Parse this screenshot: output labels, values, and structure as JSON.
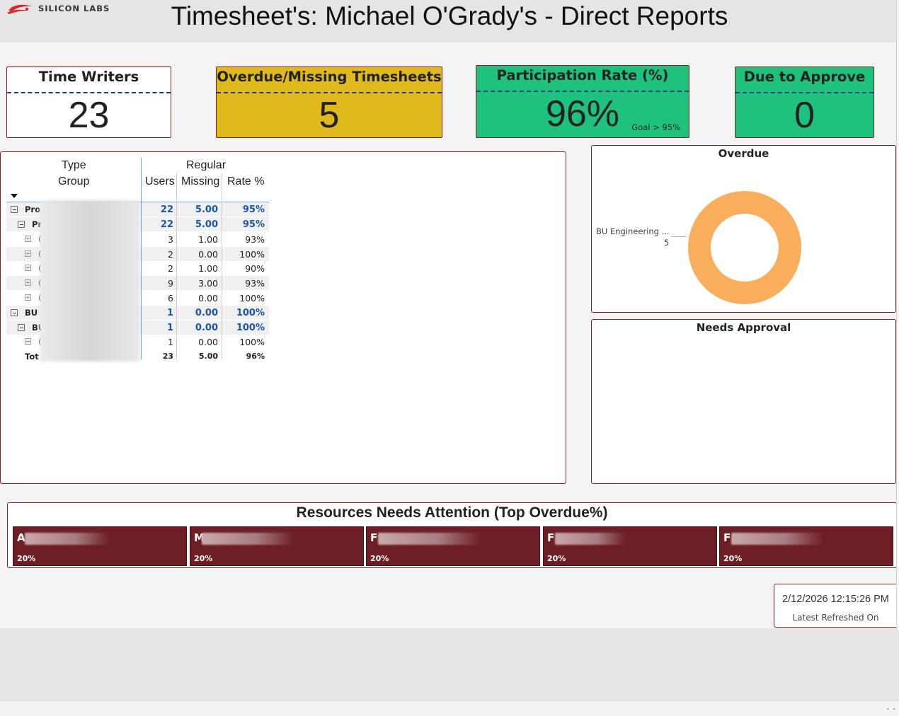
{
  "header": {
    "logo_text": "SILICON LABS",
    "title": "Timesheet's: Michael O'Grady's - Direct Reports"
  },
  "kpis": {
    "time_writers": {
      "title": "Time Writers",
      "value": "23"
    },
    "overdue": {
      "title": "Overdue/Missing Timesheets",
      "value": "5",
      "color": "#e0b91c"
    },
    "participation": {
      "title": "Participation Rate (%)",
      "value": "96%",
      "goal": "Goal > 95%",
      "color": "#1ec27d"
    },
    "due_to_approve": {
      "title": "Due to Approve",
      "value": "0",
      "color": "#1ec27d"
    }
  },
  "matrix": {
    "headers": {
      "type": "Type",
      "group": "Group",
      "regular": "Regular",
      "users": "Users",
      "missing": "Missing",
      "rate": "Rate %"
    },
    "rows": [
      {
        "label": "Pro",
        "users": "22",
        "missing": "5.00",
        "rate": "95%"
      },
      {
        "label": "Pr",
        "users": "22",
        "missing": "5.00",
        "rate": "95%"
      },
      {
        "label": "(",
        "users": "3",
        "missing": "1.00",
        "rate": "93%"
      },
      {
        "label": "(",
        "users": "2",
        "missing": "0.00",
        "rate": "100%"
      },
      {
        "label": "(",
        "users": "2",
        "missing": "1.00",
        "rate": "90%"
      },
      {
        "label": "(",
        "users": "9",
        "missing": "3.00",
        "rate": "93%"
      },
      {
        "label": "(",
        "users": "6",
        "missing": "0.00",
        "rate": "100%"
      },
      {
        "label": "BU",
        "users": "1",
        "missing": "0.00",
        "rate": "100%"
      },
      {
        "label": "BU",
        "users": "1",
        "missing": "0.00",
        "rate": "100%"
      },
      {
        "label": "(",
        "users": "1",
        "missing": "0.00",
        "rate": "100%"
      },
      {
        "label": "Tot",
        "users": "23",
        "missing": "5.00",
        "rate": "96%"
      }
    ]
  },
  "overdue_panel": {
    "title": "Overdue",
    "segment_label": "BU Engineering ...",
    "segment_value": "5",
    "color": "#f8ae5c"
  },
  "approval_panel": {
    "title": "Needs Approval"
  },
  "resources": {
    "title": "Resources Needs Attention (Top Overdue%)",
    "cards": [
      {
        "initial": "A",
        "pct": "20%"
      },
      {
        "initial": "M",
        "pct": "20%"
      },
      {
        "initial": "F",
        "pct": "20%"
      },
      {
        "initial": "F",
        "pct": "20%"
      },
      {
        "initial": "F",
        "pct": "20%"
      }
    ]
  },
  "refresh": {
    "time": "2/12/2026 12:15:26 PM",
    "label": "Latest Refreshed On"
  },
  "footer": {
    "dots": "- -"
  }
}
